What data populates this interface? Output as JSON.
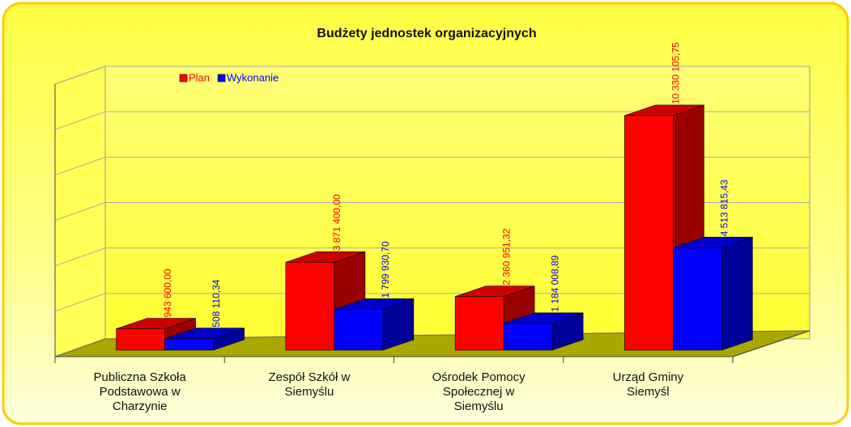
{
  "chart_data": {
    "type": "bar3d",
    "title": "Budżety jednostek organizacyjnych",
    "categories": [
      [
        "Publiczna Szkoła",
        "Podstawowa w",
        "Charzynie"
      ],
      [
        "Zespół Szkół w",
        "Siemyślu"
      ],
      [
        "Ośrodek Pomocy",
        "Społecznej w",
        "Siemyślu"
      ],
      [
        "Urząd Gminy",
        "Siemyśl"
      ]
    ],
    "series": [
      {
        "name": "Plan",
        "color": "#ff0000",
        "values": [
          943600.0,
          3871400.0,
          2360951.32,
          10330105.75
        ],
        "value_labels": [
          "943 600,00",
          "3 871 400,00",
          "2 360 951,32",
          "10 330 105,75"
        ]
      },
      {
        "name": "Wykonanie",
        "color": "#0000ff",
        "values": [
          508110.34,
          1799930.7,
          1184008.89,
          4513815.43
        ],
        "value_labels": [
          "508 110,34",
          "1 799 930,70",
          "1 184 008,89",
          "4 513 815,43"
        ]
      }
    ],
    "ylim": [
      0,
      12000000
    ],
    "yticks": [
      0,
      2000000,
      4000000,
      6000000,
      8000000,
      10000000,
      12000000
    ],
    "grid": true,
    "legend": "upper left"
  }
}
